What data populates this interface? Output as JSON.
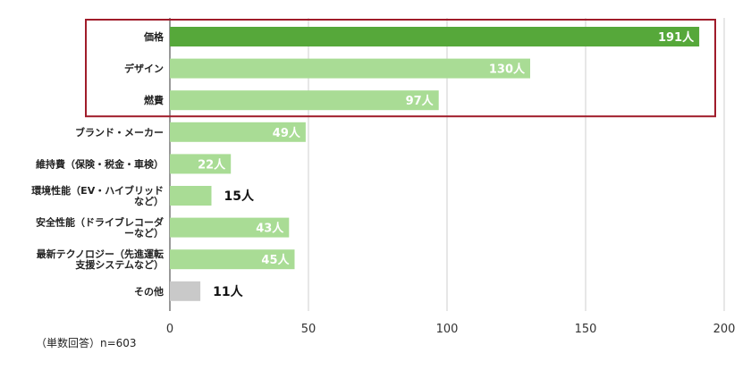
{
  "chart_data": {
    "type": "bar",
    "orientation": "horizontal",
    "categories": [
      "価格",
      "デザイン",
      "燃費",
      "ブランド・メーカー",
      "維持費（保険・税金・車検）",
      "環境性能（EV・ハイブリッドなど）",
      "安全性能（ドライブレコーダーなど）",
      "最新テクノロジー（先進運転支援システムなど）",
      "その他"
    ],
    "category_lines": [
      [
        "価格"
      ],
      [
        "デザイン"
      ],
      [
        "燃費"
      ],
      [
        "ブランド・メーカー"
      ],
      [
        "維持費（保険・税金・車検）"
      ],
      [
        "環境性能（EV・ハイブリッド",
        "など）"
      ],
      [
        "安全性能（ドライブレコーダ",
        "ーなど）"
      ],
      [
        "最新テクノロジー（先進運転",
        "支援システムなど）"
      ],
      [
        "その他"
      ]
    ],
    "values": [
      191,
      130,
      97,
      49,
      22,
      15,
      43,
      45,
      11
    ],
    "value_labels": [
      "191人",
      "130人",
      "97人",
      "49人",
      "22人",
      "15人",
      "43人",
      "45人",
      "11人"
    ],
    "bar_colors": [
      "#56a83a",
      "#a9dc95",
      "#a9dc95",
      "#a9dc95",
      "#a9dc95",
      "#a9dc95",
      "#a9dc95",
      "#a9dc95",
      "#c9c9c9"
    ],
    "label_inside": [
      true,
      true,
      true,
      true,
      true,
      false,
      true,
      true,
      false
    ],
    "xlim": [
      0,
      200
    ],
    "xticks": [
      0,
      50,
      100,
      150,
      200
    ],
    "grid": true,
    "highlight": {
      "from_index": 0,
      "to_index": 2,
      "color": "#a01c2a"
    },
    "note": "（単数回答）n=603"
  }
}
